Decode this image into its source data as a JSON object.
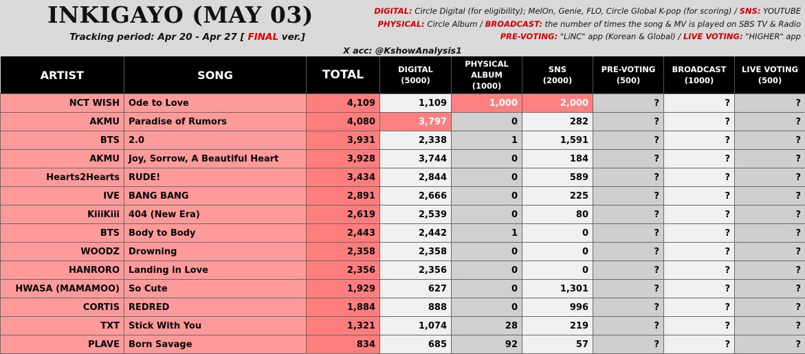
{
  "header": {
    "title": "INKIGAYO (MAY 03)",
    "tracking_prefix": "Tracking period: Apr 20 - Apr 27 [",
    "tracking_final": "FINAL",
    "tracking_suffix": "ver.]",
    "x_account": "X acc: @KshowAnalysis1"
  },
  "legend": {
    "line1_k1": "DIGITAL:",
    "line1_v1": "Circle Digital (for eligibility); MelOn, Genie, FLO, Circle Global K-pop (for scoring) /",
    "line1_k2": "SNS:",
    "line1_v2": "YOUTUBE",
    "line2_k1": "PHYSICAL:",
    "line2_v1": "Circle Album /",
    "line2_k2": "BROADCAST:",
    "line2_v2": "the number of times the song & MV is played on SBS TV & Radio",
    "line3_k1": "PRE-VOTING:",
    "line3_v1": "\"LiNC\" app (Korean & Global) /",
    "line3_k2": "LIVE VOTING:",
    "line3_v2": "\"HIGHER\" app"
  },
  "columns": {
    "artist": "ARTIST",
    "song": "SONG",
    "total": "TOTAL",
    "digital": "DIGITAL",
    "digital_max": "(5000)",
    "physical_1": "PHYSICAL",
    "physical_2": "ALBUM",
    "physical_max": "(1000)",
    "sns": "SNS",
    "sns_max": "(2000)",
    "prevoting": "PRE-VOTING",
    "prevoting_max": "(500)",
    "broadcast": "BROADCAST",
    "broadcast_max": "(1000)",
    "live": "LIVE VOTING",
    "live_max": "(500)"
  },
  "rows": [
    {
      "artist": "NCT WISH",
      "song": "Ode to Love",
      "total": "4,109",
      "digital": "1,109",
      "physical": "1,000",
      "sns": "2,000",
      "pre": "?",
      "broadcast": "?",
      "live": "?"
    },
    {
      "artist": "AKMU",
      "song": "Paradise of Rumors",
      "total": "4,080",
      "digital": "3,797",
      "physical": "0",
      "sns": "282",
      "pre": "?",
      "broadcast": "?",
      "live": "?"
    },
    {
      "artist": "BTS",
      "song": "2.0",
      "total": "3,931",
      "digital": "2,338",
      "physical": "1",
      "sns": "1,591",
      "pre": "?",
      "broadcast": "?",
      "live": "?"
    },
    {
      "artist": "AKMU",
      "song": "Joy, Sorrow, A Beautiful Heart",
      "total": "3,928",
      "digital": "3,744",
      "physical": "0",
      "sns": "184",
      "pre": "?",
      "broadcast": "?",
      "live": "?"
    },
    {
      "artist": "Hearts2Hearts",
      "song": "RUDE!",
      "total": "3,434",
      "digital": "2,844",
      "physical": "0",
      "sns": "589",
      "pre": "?",
      "broadcast": "?",
      "live": "?"
    },
    {
      "artist": "IVE",
      "song": "BANG BANG",
      "total": "2,891",
      "digital": "2,666",
      "physical": "0",
      "sns": "225",
      "pre": "?",
      "broadcast": "?",
      "live": "?"
    },
    {
      "artist": "KiiiKiii",
      "song": "404 (New Era)",
      "total": "2,619",
      "digital": "2,539",
      "physical": "0",
      "sns": "80",
      "pre": "?",
      "broadcast": "?",
      "live": "?"
    },
    {
      "artist": "BTS",
      "song": "Body to Body",
      "total": "2,443",
      "digital": "2,442",
      "physical": "1",
      "sns": "0",
      "pre": "?",
      "broadcast": "?",
      "live": "?"
    },
    {
      "artist": "WOODZ",
      "song": "Drowning",
      "total": "2,358",
      "digital": "2,358",
      "physical": "0",
      "sns": "0",
      "pre": "?",
      "broadcast": "?",
      "live": "?"
    },
    {
      "artist": "HANRORO",
      "song": "Landing in Love",
      "total": "2,356",
      "digital": "2,356",
      "physical": "0",
      "sns": "0",
      "pre": "?",
      "broadcast": "?",
      "live": "?"
    },
    {
      "artist": "HWASA (MAMAMOO)",
      "song": "So Cute",
      "total": "1,929",
      "digital": "627",
      "physical": "0",
      "sns": "1,301",
      "pre": "?",
      "broadcast": "?",
      "live": "?"
    },
    {
      "artist": "CORTIS",
      "song": "REDRED",
      "total": "1,884",
      "digital": "888",
      "physical": "0",
      "sns": "996",
      "pre": "?",
      "broadcast": "?",
      "live": "?"
    },
    {
      "artist": "TXT",
      "song": "Stick With You",
      "total": "1,321",
      "digital": "1,074",
      "physical": "28",
      "sns": "219",
      "pre": "?",
      "broadcast": "?",
      "live": "?"
    },
    {
      "artist": "PLAVE",
      "song": "Born Savage",
      "total": "834",
      "digital": "685",
      "physical": "92",
      "sns": "57",
      "pre": "?",
      "broadcast": "?",
      "live": "?"
    }
  ],
  "colors": {
    "row_pink": "#ff9a9a",
    "total_pink": "#ff7d7d",
    "highlight": "#ff8080",
    "accent_red": "#d10000"
  }
}
